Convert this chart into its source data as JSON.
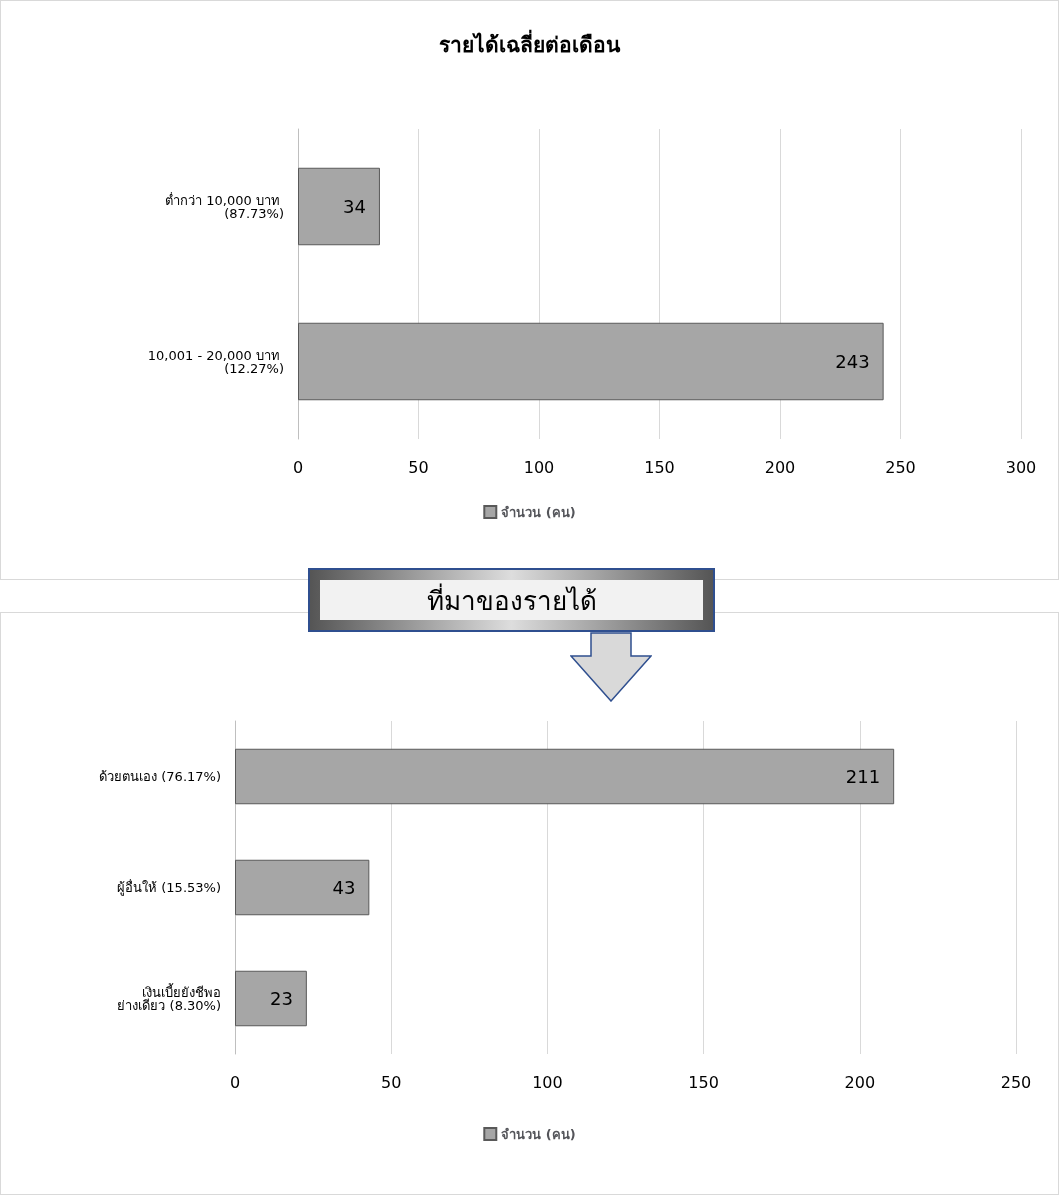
{
  "chart_data": [
    {
      "type": "bar",
      "orientation": "horizontal",
      "title": "รายได้เฉลี่ยต่อเดือน",
      "categories": [
        "ต่ำกว่า 10,000 บาท (87.73%)",
        "10,001 - 20,000 บาท (12.27%)"
      ],
      "series": [
        {
          "name": "จำนวน (คน)",
          "color": "#a6a6a6",
          "values": [
            34,
            243
          ]
        }
      ],
      "xlim": [
        0,
        300
      ],
      "xticks": [
        0,
        50,
        100,
        150,
        200,
        250,
        300
      ],
      "grid": "x",
      "legend": "bottom",
      "data_labels": true
    },
    {
      "type": "bar",
      "orientation": "horizontal",
      "title": "ที่มาของรายได้",
      "categories": [
        "ด้วยตนเอง (76.17%)",
        "ผู้อื่นให้ (15.53%)",
        "เงินเบี้ยยังชีพอย่างเดียว (8.30%)"
      ],
      "series": [
        {
          "name": "จำนวน (คน)",
          "color": "#a6a6a6",
          "values": [
            211,
            43,
            23
          ]
        }
      ],
      "xlim": [
        0,
        250
      ],
      "xticks": [
        0,
        50,
        100,
        150,
        200,
        250
      ],
      "grid": "x",
      "legend": "bottom",
      "data_labels": true
    }
  ]
}
